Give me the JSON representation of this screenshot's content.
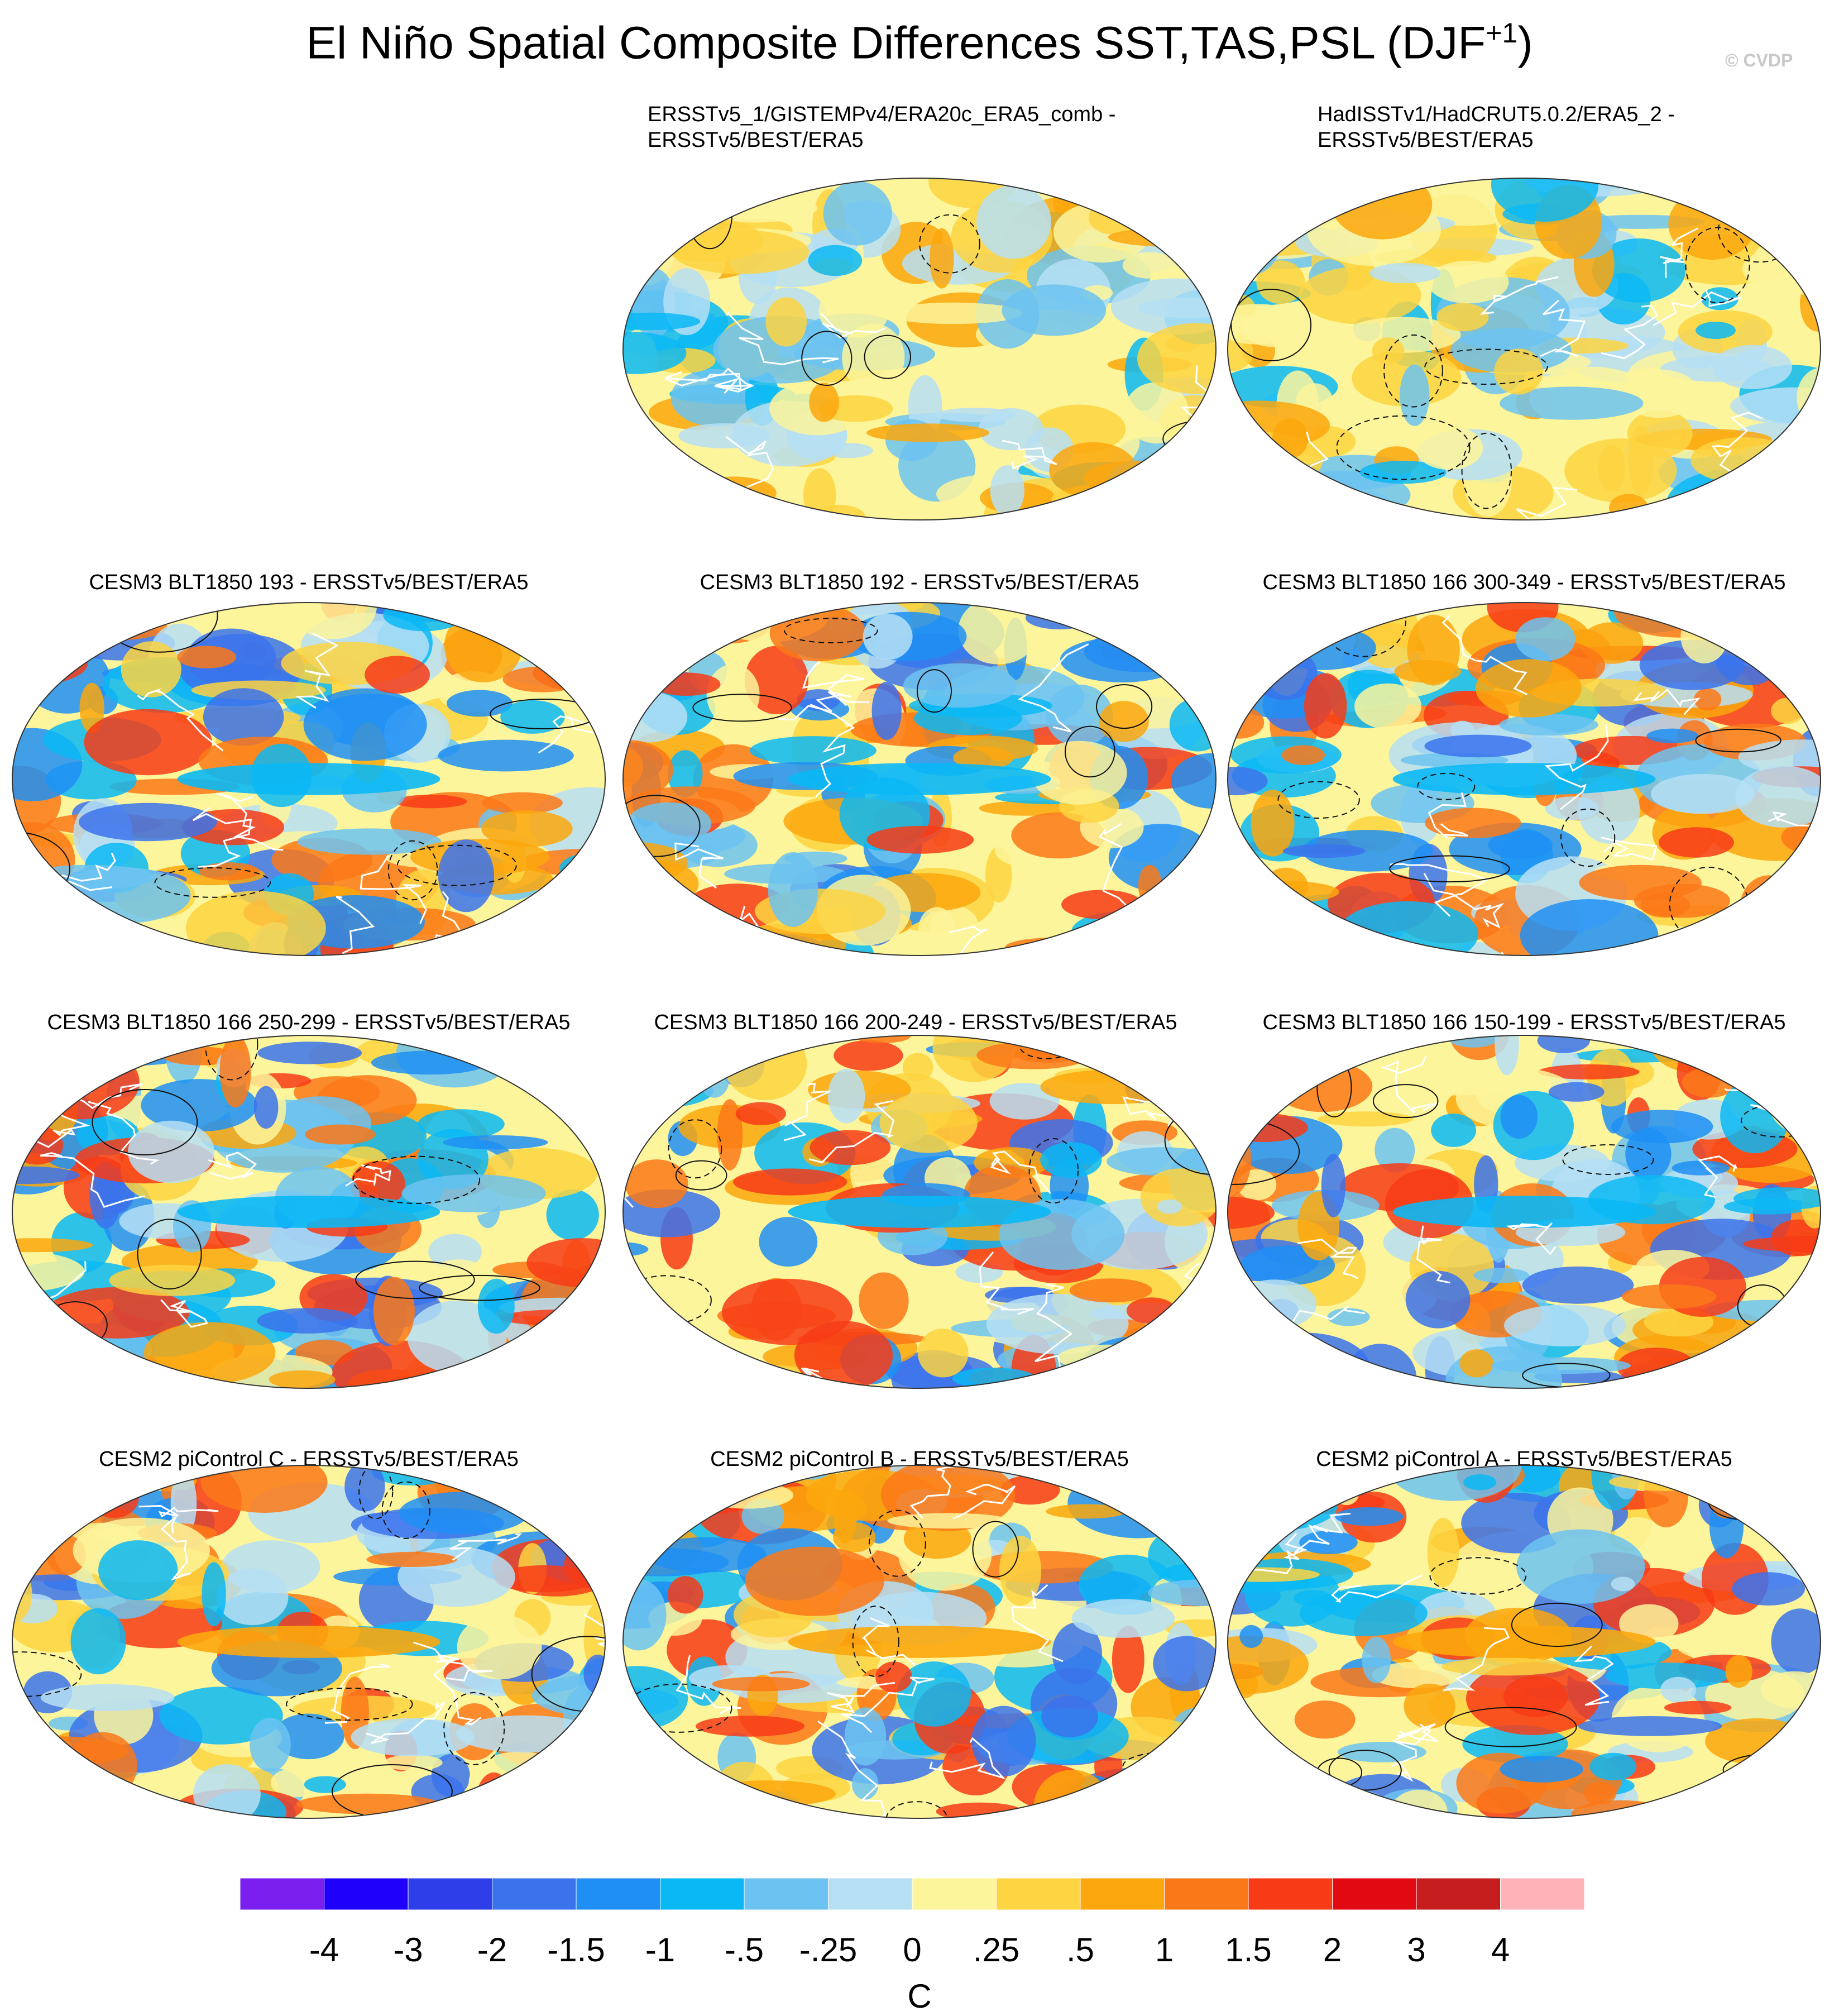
{
  "title": {
    "main": "El Niño Spatial Composite Differences SST,TAS,PSL (DJF",
    "sup": "+1",
    "close": ")"
  },
  "watermark": "© CVDP",
  "colors": {
    "background": "#ffffff",
    "ocean_neutral": "#fdf59b",
    "land_outline": "#ffffff",
    "coast": "#333333",
    "contour": "#111111"
  },
  "panels": [
    {
      "title_lines": [
        "ERSSTv5_1/GISTEMPv4/ERA20c_ERA5_comb -",
        "ERSSTv5/BEST/ERA5"
      ],
      "align": "left"
    },
    {
      "title_lines": [
        "HadISSTv1/HadCRUT5.0.2/ERA5_2 -",
        "ERSSTv5/BEST/ERA5"
      ],
      "align": "left"
    },
    {
      "title_lines": [
        "CESM3 BLT1850 193 - ERSSTv5/BEST/ERA5"
      ],
      "align": "center"
    },
    {
      "title_lines": [
        "CESM3 BLT1850 192 - ERSSTv5/BEST/ERA5"
      ],
      "align": "center"
    },
    {
      "title_lines": [
        "CESM3 BLT1850 166 300-349 - ERSSTv5/BEST/ERA5"
      ],
      "align": "center"
    },
    {
      "title_lines": [
        "CESM3 BLT1850 166 250-299 - ERSSTv5/BEST/ERA5"
      ],
      "align": "center"
    },
    {
      "title_lines": [
        "CESM3 BLT1850 166 200-249 - ERSSTv5/BEST/ERA5"
      ],
      "align": "center"
    },
    {
      "title_lines": [
        "CESM3 BLT1850 166 150-199 - ERSSTv5/BEST/ERA5"
      ],
      "align": "center"
    },
    {
      "title_lines": [
        "CESM2 piControl C - ERSSTv5/BEST/ERA5"
      ],
      "align": "center"
    },
    {
      "title_lines": [
        "CESM2 piControl B - ERSSTv5/BEST/ERA5"
      ],
      "align": "center"
    },
    {
      "title_lines": [
        "CESM2 piControl A - ERSSTv5/BEST/ERA5"
      ],
      "align": "center"
    }
  ],
  "chart_data": {
    "type": "heatmap",
    "title": "El Niño Spatial Composite Differences SST,TAS,PSL (DJF+1)",
    "variables": [
      "SST",
      "TAS",
      "PSL"
    ],
    "season": "DJF+1",
    "projection": "Robinson (global)",
    "overlay": "PSL difference contours (solid positive, dashed negative)",
    "colorbar": {
      "label": "C",
      "tick_labels": [
        "-4",
        "-3",
        "-2",
        "-1.5",
        "-1",
        "-.5",
        "-.25",
        "0",
        ".25",
        ".5",
        "1",
        "1.5",
        "2",
        "3",
        "4"
      ],
      "levels": [
        -4,
        -3,
        -2,
        -1.5,
        -1,
        -0.5,
        -0.25,
        0,
        0.25,
        0.5,
        1,
        1.5,
        2,
        3,
        4
      ],
      "colors": [
        "#7a1fee",
        "#1f00fa",
        "#2e3ee8",
        "#3b73ec",
        "#1f8ff5",
        "#0ab8f5",
        "#6cc3f1",
        "#b6dff4",
        "#fdf59b",
        "#fdd441",
        "#fca70d",
        "#fb7818",
        "#f73b16",
        "#e20a12",
        "#c61e1f",
        "#fdb3b8"
      ]
    },
    "panels": [
      {
        "name": "ERSSTv5_1/GISTEMPv4/ERA20c_ERA5_comb - ERSSTv5/BEST/ERA5"
      },
      {
        "name": "HadISSTv1/HadCRUT5.0.2/ERA5_2 - ERSSTv5/BEST/ERA5"
      },
      {
        "name": "CESM3 BLT1850 193 - ERSSTv5/BEST/ERA5"
      },
      {
        "name": "CESM3 BLT1850 192 - ERSSTv5/BEST/ERA5"
      },
      {
        "name": "CESM3 BLT1850 166 300-349 - ERSSTv5/BEST/ERA5"
      },
      {
        "name": "CESM3 BLT1850 166 250-299 - ERSSTv5/BEST/ERA5"
      },
      {
        "name": "CESM3 BLT1850 166 200-249 - ERSSTv5/BEST/ERA5"
      },
      {
        "name": "CESM3 BLT1850 166 150-199 - ERSSTv5/BEST/ERA5"
      },
      {
        "name": "CESM2 piControl C - ERSSTv5/BEST/ERA5"
      },
      {
        "name": "CESM2 piControl B - ERSSTv5/BEST/ERA5"
      },
      {
        "name": "CESM2 piControl A - ERSSTv5/BEST/ERA5"
      }
    ]
  }
}
